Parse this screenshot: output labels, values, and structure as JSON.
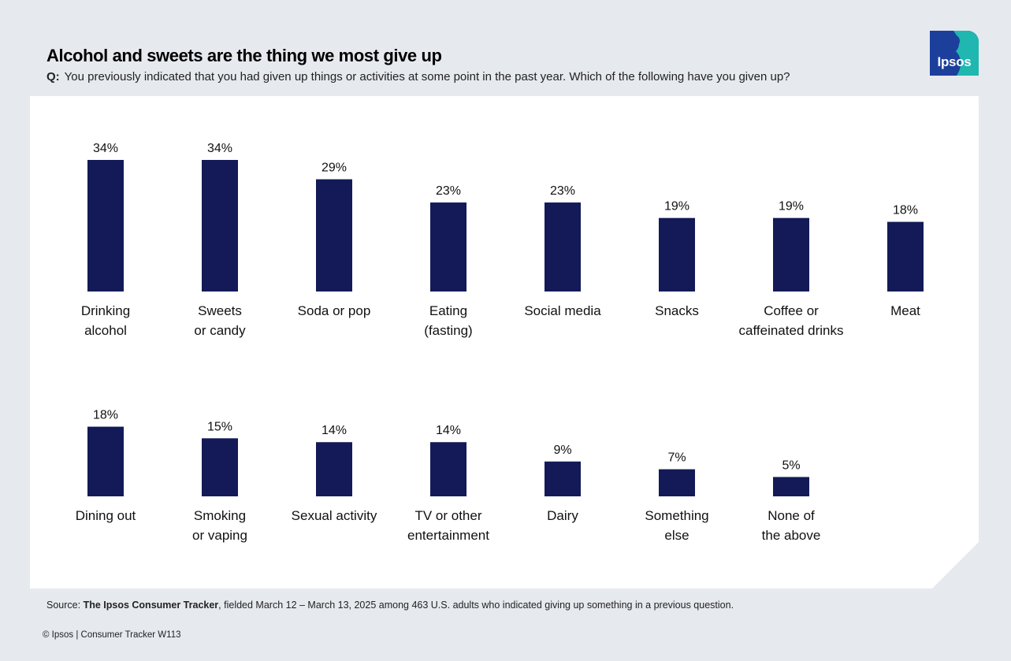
{
  "header": {
    "title": "Alcohol and sweets are the thing we most give up",
    "question_prefix": "Q:",
    "question": "You previously indicated that you had given up things or activities at some point in the past year. Which of the following have you given up?"
  },
  "logo": {
    "text": "Ipsos",
    "icon": "ipsos-logo-icon"
  },
  "footer": {
    "source_label": "Source:",
    "source_name": "The Ipsos Consumer Tracker",
    "source_rest": ", fielded March 12 – March 13, 2025 among 463 U.S. adults who indicated giving up something in a previous question.",
    "copyright": "© Ipsos | Consumer Tracker W113"
  },
  "colors": {
    "bar": "#131a57",
    "background": "#e6e9ee",
    "panel": "#ffffff",
    "logo_blue": "#1c3f9c",
    "logo_teal": "#1fb7b0"
  },
  "chart_data": {
    "type": "bar",
    "value_suffix": "%",
    "ylim": [
      0,
      34
    ],
    "grid": false,
    "categories": [
      "Drinking alcohol",
      "Sweets or candy",
      "Soda or pop",
      "Eating (fasting)",
      "Social media",
      "Snacks",
      "Coffee or caffeinated drinks",
      "Meat",
      "Dining out",
      "Smoking or vaping",
      "Sexual activity",
      "TV or other entertainment",
      "Dairy",
      "Something else",
      "None of the above"
    ],
    "values": [
      34,
      34,
      29,
      23,
      23,
      19,
      19,
      18,
      18,
      15,
      14,
      14,
      9,
      7,
      5
    ],
    "category_label_lines": [
      [
        "Drinking",
        "alcohol"
      ],
      [
        "Sweets",
        "or candy"
      ],
      [
        "Soda or pop"
      ],
      [
        "Eating",
        "(fasting)"
      ],
      [
        "Social media"
      ],
      [
        "Snacks"
      ],
      [
        "Coffee or",
        "caffeinated drinks"
      ],
      [
        "Meat"
      ],
      [
        "Dining out"
      ],
      [
        "Smoking",
        "or vaping"
      ],
      [
        "Sexual activity"
      ],
      [
        "TV or other",
        "entertainment"
      ],
      [
        "Dairy"
      ],
      [
        "Something",
        "else"
      ],
      [
        "None of",
        "the above"
      ]
    ]
  }
}
